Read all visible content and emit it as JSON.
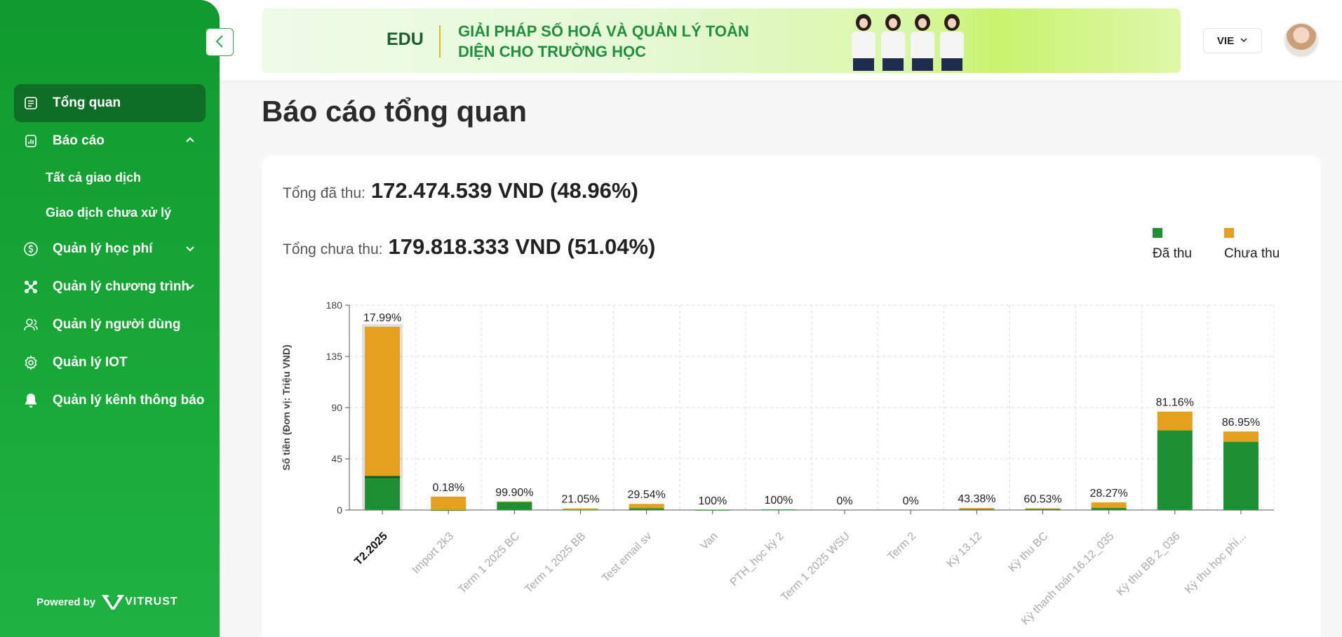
{
  "sidebar": {
    "items": [
      {
        "label": "Tổng quan",
        "icon": "report-icon",
        "active": true
      },
      {
        "label": "Báo cáo",
        "icon": "chart-report-icon",
        "expanded": true
      },
      {
        "label": "Tất cả giao dịch"
      },
      {
        "label": "Giao dịch chưa xử lý"
      },
      {
        "label": "Quản lý học phí",
        "icon": "dollar-circle-icon"
      },
      {
        "label": "Quản lý chương trình",
        "icon": "network-icon"
      },
      {
        "label": "Quản lý người dùng",
        "icon": "users-icon"
      },
      {
        "label": "Quản lý IOT",
        "icon": "gear-icon"
      },
      {
        "label": "Quản lý kênh thông báo",
        "icon": "bell-icon"
      }
    ],
    "powered_by": "Powered by",
    "brand": "VITRUST"
  },
  "header": {
    "banner_brand": "EDU",
    "banner_slogan": "GIẢI PHÁP SỐ HOÁ VÀ QUẢN LÝ TOÀN DIỆN CHO TRƯỜNG HỌC",
    "language": "VIE"
  },
  "page": {
    "title": "Báo cáo tổng quan",
    "collected_label": "Tổng đã thu:",
    "collected_value": "172.474.539 VND (48.96%)",
    "uncollected_label": "Tổng chưa thu:",
    "uncollected_value": "179.818.333 VND (51.04%)"
  },
  "colors": {
    "collected": "#1f8f33",
    "uncollected": "#e5a11d",
    "sidebar": "#17a636"
  },
  "chart_data": {
    "type": "bar",
    "stacked": true,
    "ylabel": "Số tiền (Đơn vị: Triệu VND)",
    "ylim": [
      0,
      180
    ],
    "yticks": [
      0,
      45,
      90,
      135,
      180
    ],
    "grid": true,
    "legend": "top-right",
    "categories": [
      "T2.2025",
      "Import 2k3",
      "Term 1 2025 BC",
      "Term 1 2025 BB",
      "Test email sv",
      "Van",
      "PTH_học kỳ 2",
      "Term 1 2025 WSU",
      "Term 2",
      "Kỳ 13.12",
      "Kỳ thu BC",
      "Kỳ thanh toán 16.12_035",
      "Kỳ thu BB 2_036",
      "Kỳ thu học phí..."
    ],
    "percent_labels": [
      "17.99%",
      "0.18%",
      "99.90%",
      "21.05%",
      "29.54%",
      "100%",
      "100%",
      "0%",
      "0%",
      "43.38%",
      "60.53%",
      "28.27%",
      "81.16%",
      "86.95%"
    ],
    "series": [
      {
        "name": "Đã thu",
        "values": [
          29,
          0.02,
          7.5,
          0.3,
          1.6,
          0.1,
          0.5,
          0,
          0,
          0.8,
          0.9,
          1.9,
          70,
          60
        ]
      },
      {
        "name": "Chưa thu",
        "values": [
          132,
          11.8,
          0.01,
          1.1,
          3.8,
          0,
          0,
          0,
          0,
          1.0,
          0.6,
          4.8,
          16.5,
          9
        ]
      }
    ],
    "highlighted_category": "T2.2025"
  }
}
